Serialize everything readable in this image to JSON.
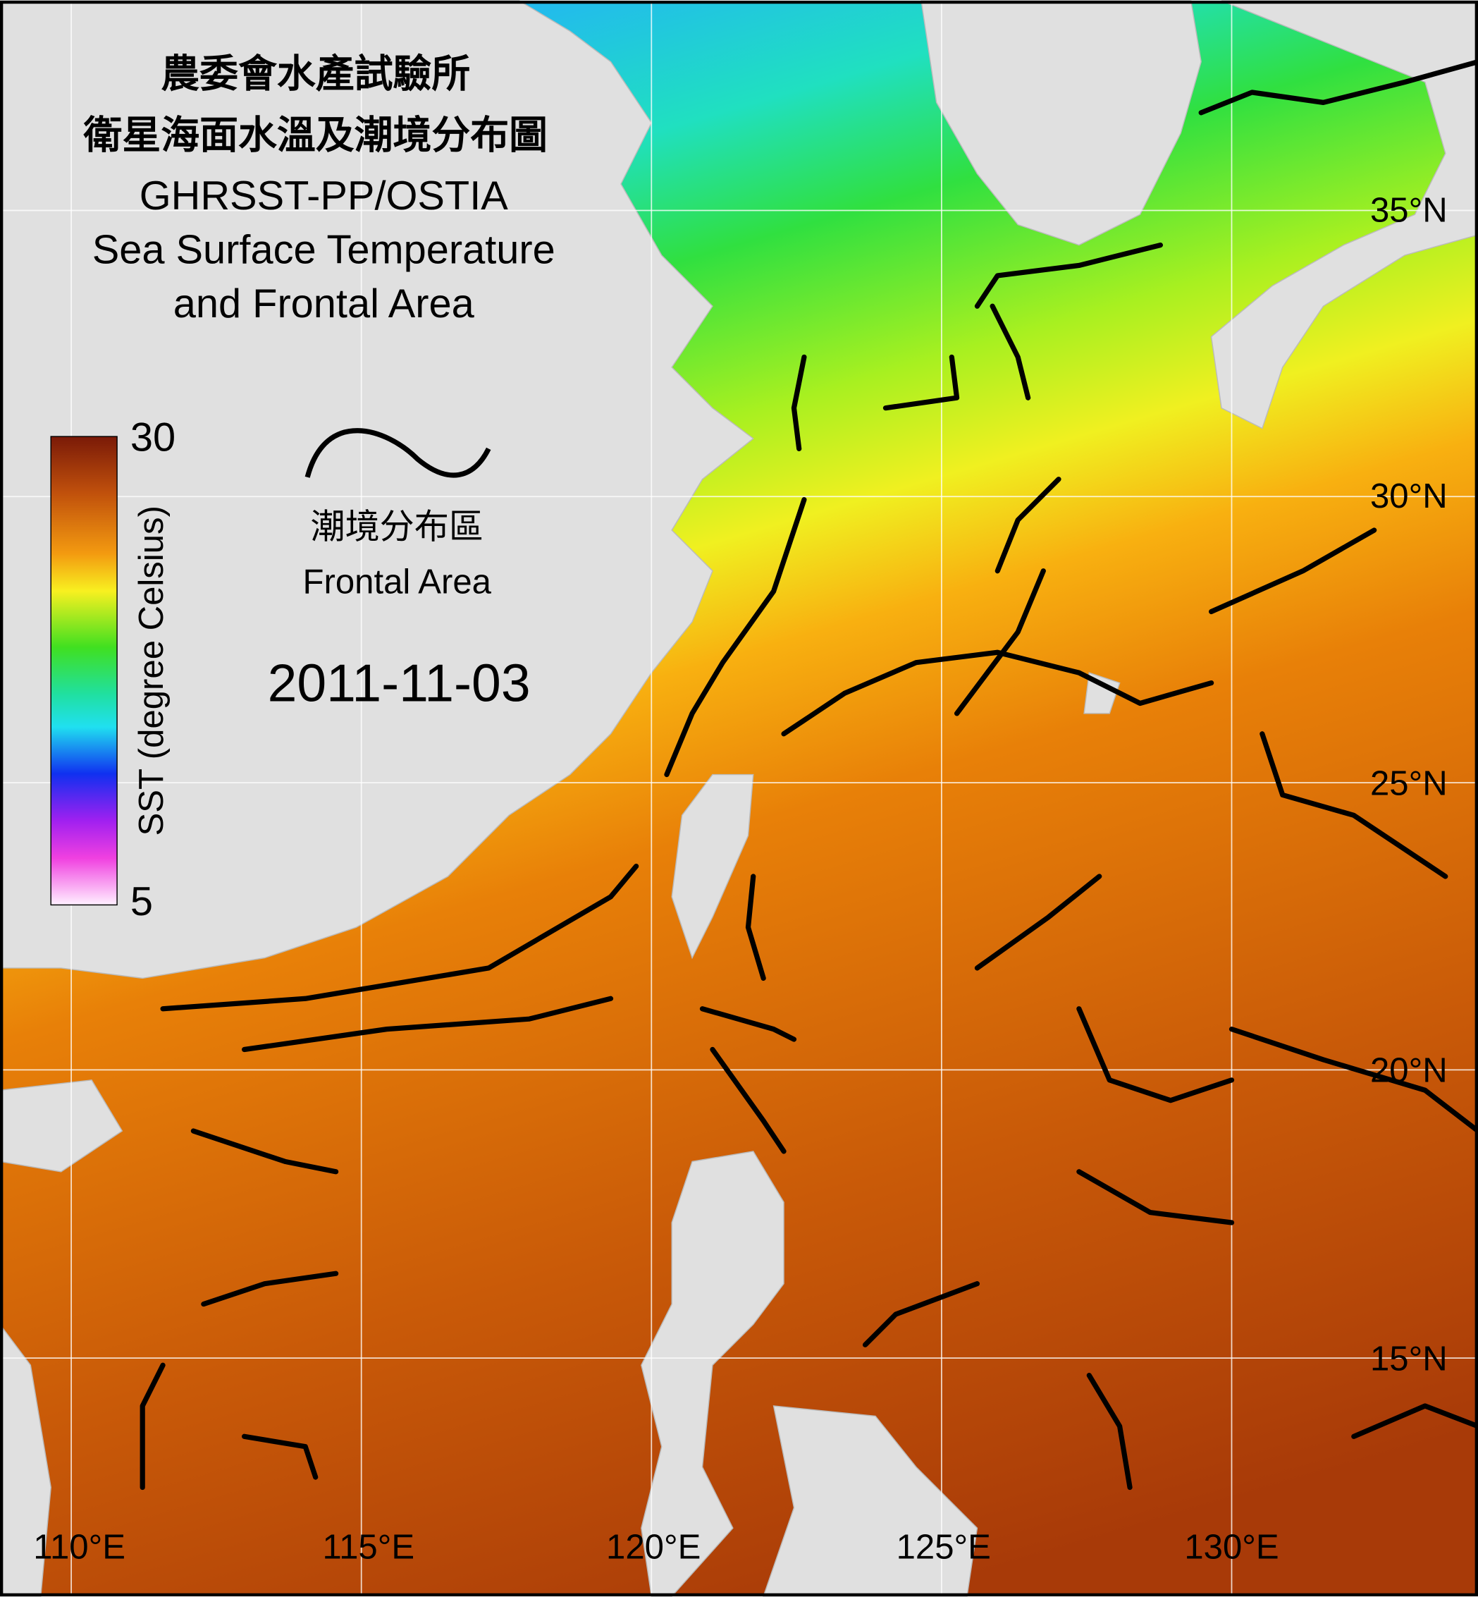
{
  "header": {
    "title_zh": "農委會水產試驗所",
    "subtitle_zh": "衛星海面水溫及潮境分布圖",
    "product": "GHRSST-PP/OSTIA",
    "title_en_1": "Sea Surface Temperature",
    "title_en_2": "and Frontal Area"
  },
  "colorbar": {
    "label": "SST (degree Celsius)",
    "max": 30,
    "min": 5
  },
  "legend": {
    "label_zh": "潮境分布區",
    "label_en": "Frontal Area"
  },
  "date": "2011-11-03",
  "latitudes": [
    "35°N",
    "30°N",
    "25°N",
    "20°N",
    "15°N"
  ],
  "longitudes": [
    "110°E",
    "115°E",
    "120°E",
    "125°E",
    "130°E"
  ]
}
